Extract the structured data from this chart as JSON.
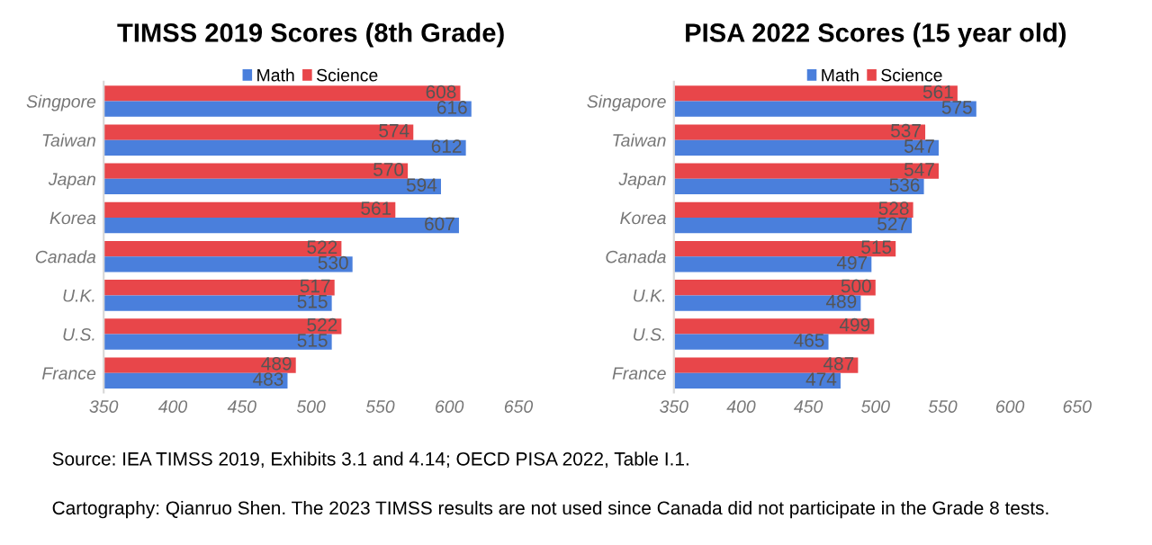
{
  "chart_data": [
    {
      "type": "bar",
      "orientation": "horizontal",
      "title": "TIMSS 2019 Scores (8th Grade)",
      "categories": [
        "Singpore",
        "Taiwan",
        "Japan",
        "Korea",
        "Canada",
        "U.K.",
        "U.S.",
        "France"
      ],
      "series": [
        {
          "name": "Science",
          "color": "#e8464a",
          "values": [
            608,
            574,
            570,
            561,
            522,
            517,
            522,
            489
          ]
        },
        {
          "name": "Math",
          "color": "#4a7fdc",
          "values": [
            616,
            612,
            594,
            607,
            530,
            515,
            515,
            483
          ]
        }
      ],
      "xlim": [
        350,
        650
      ],
      "xticks": [
        350,
        400,
        450,
        500,
        550,
        600,
        650
      ],
      "grid": false,
      "legend": "top",
      "data_labels": true
    },
    {
      "type": "bar",
      "orientation": "horizontal",
      "title": "PISA 2022 Scores (15 year old)",
      "categories": [
        "Singapore",
        "Taiwan",
        "Japan",
        "Korea",
        "Canada",
        "U.K.",
        "U.S.",
        "France"
      ],
      "series": [
        {
          "name": "Science",
          "color": "#e8464a",
          "values": [
            561,
            537,
            547,
            528,
            515,
            500,
            499,
            487
          ]
        },
        {
          "name": "Math",
          "color": "#4a7fdc",
          "values": [
            575,
            547,
            536,
            527,
            497,
            489,
            465,
            474
          ]
        }
      ],
      "xlim": [
        350,
        650
      ],
      "xticks": [
        350,
        400,
        450,
        500,
        550,
        600,
        650
      ],
      "grid": false,
      "legend": "top",
      "data_labels": true,
      "annotations": [
        "Source: IEA TIMSS 2019, Exhibits 3.1 and 4.14; OECD PISA 2022, Table I.1.",
        "Cartography: Qianruo Shen. The 2023 TIMSS results are not used since Canada did not participate in the Grade 8 tests."
      ]
    }
  ]
}
